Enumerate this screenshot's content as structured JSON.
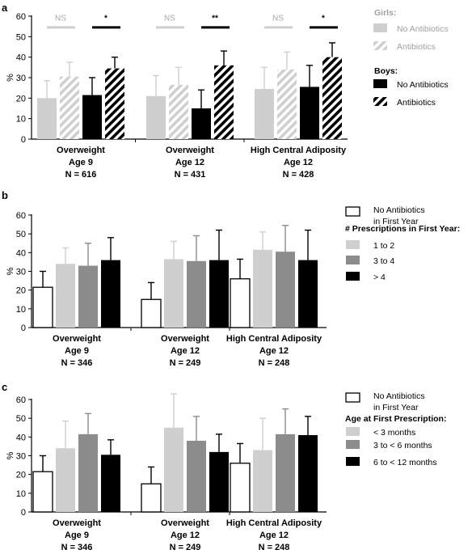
{
  "chart_data": [
    {
      "panel": "a",
      "type": "bar",
      "ylabel": "%",
      "ylim": [
        0,
        60
      ],
      "yticks": [
        "0",
        "10",
        "20",
        "30",
        "40",
        "50",
        "60"
      ],
      "groups": [
        {
          "lines": [
            "Overweight",
            "Age 9",
            "N = 616"
          ]
        },
        {
          "lines": [
            "Overweight",
            "Age 12",
            "N = 431"
          ]
        },
        {
          "lines": [
            "High Central Adiposity",
            "Age 12",
            "N = 428"
          ]
        }
      ],
      "series": [
        {
          "key": "girls_no",
          "values": [
            20,
            21,
            24.5
          ],
          "errors": [
            8.5,
            10,
            10.5
          ],
          "color": "#cfcfcf",
          "pattern": "solid",
          "outline": false
        },
        {
          "key": "girls_ab",
          "values": [
            30.5,
            26.5,
            34
          ],
          "errors": [
            7,
            8.5,
            8.5
          ],
          "color": "#cfcfcf",
          "pattern": "hatch",
          "outline": false
        },
        {
          "key": "boys_no",
          "values": [
            21.5,
            15,
            25.5
          ],
          "errors": [
            8.5,
            9,
            10.5
          ],
          "color": "#000000",
          "pattern": "solid",
          "outline": false
        },
        {
          "key": "boys_ab",
          "values": [
            34.5,
            36,
            40
          ],
          "errors": [
            5.5,
            7,
            7
          ],
          "color": "#000000",
          "pattern": "hatch",
          "outline": false
        }
      ],
      "significance": [
        {
          "group": 0,
          "girls": "NS",
          "boys": "*"
        },
        {
          "group": 1,
          "girls": "NS",
          "boys": "**"
        },
        {
          "group": 2,
          "girls": "NS",
          "boys": "*"
        }
      ],
      "legend": {
        "items": [
          {
            "kind": "header",
            "text": "Girls:",
            "color": "#a0a0a0"
          },
          {
            "kind": "item",
            "text": "No Antibiotics",
            "color": "#cfcfcf",
            "pattern": "solid",
            "textColor": "#a0a0a0"
          },
          {
            "kind": "item",
            "text": "Antibiotics",
            "color": "#cfcfcf",
            "pattern": "hatch",
            "textColor": "#a0a0a0"
          },
          {
            "kind": "header",
            "text": "Boys:",
            "color": "#000000"
          },
          {
            "kind": "item",
            "text": "No Antibiotics",
            "color": "#000000",
            "pattern": "solid",
            "textColor": "#000000"
          },
          {
            "kind": "item",
            "text": "Antibiotics",
            "color": "#000000",
            "pattern": "hatch",
            "textColor": "#000000"
          }
        ]
      }
    },
    {
      "panel": "b",
      "type": "bar",
      "ylabel": "%",
      "ylim": [
        0,
        60
      ],
      "yticks": [
        "0",
        "10",
        "20",
        "30",
        "40",
        "50",
        "60"
      ],
      "groups": [
        {
          "lines": [
            "Overweight",
            "Age 9",
            "N = 346"
          ]
        },
        {
          "lines": [
            "Overweight",
            "Age 12",
            "N = 249"
          ]
        },
        {
          "lines": [
            "High Central Adiposity",
            "Age 12",
            "N = 248"
          ]
        }
      ],
      "series": [
        {
          "key": "none",
          "values": [
            21.5,
            15,
            26
          ],
          "errors": [
            8.5,
            9,
            10.5
          ],
          "color": "#ffffff",
          "pattern": "solid",
          "outline": true
        },
        {
          "key": "p1to2",
          "values": [
            34,
            36.5,
            41.5
          ],
          "errors": [
            8.5,
            9.5,
            9.5
          ],
          "color": "#cfcfcf",
          "pattern": "solid",
          "outline": false
        },
        {
          "key": "p3to4",
          "values": [
            33,
            35.5,
            40.5
          ],
          "errors": [
            12,
            13.5,
            14
          ],
          "color": "#8c8c8c",
          "pattern": "solid",
          "outline": false
        },
        {
          "key": "pgt4",
          "values": [
            36,
            36,
            36
          ],
          "errors": [
            12,
            16,
            16
          ],
          "color": "#000000",
          "pattern": "solid",
          "outline": false
        }
      ],
      "legend": {
        "items": [
          {
            "kind": "item",
            "text": "No Antibiotics",
            "text2": "in First Year",
            "color": "#ffffff",
            "pattern": "solid",
            "outline": true,
            "textColor": "#000000"
          },
          {
            "kind": "header",
            "text": "#   Prescriptions in First  Year:",
            "color": "#000000"
          },
          {
            "kind": "item",
            "text": "1 to 2",
            "color": "#cfcfcf",
            "pattern": "solid",
            "textColor": "#000000"
          },
          {
            "kind": "item",
            "text": "3 to 4",
            "color": "#8c8c8c",
            "pattern": "solid",
            "textColor": "#000000"
          },
          {
            "kind": "item",
            "text": "> 4",
            "color": "#000000",
            "pattern": "solid",
            "textColor": "#000000"
          }
        ]
      }
    },
    {
      "panel": "c",
      "type": "bar",
      "ylabel": "%",
      "ylim": [
        0,
        60
      ],
      "yticks": [
        "0",
        "10",
        "20",
        "30",
        "40",
        "50",
        "60"
      ],
      "groups": [
        {
          "lines": [
            "Overweight",
            "Age 9",
            "N = 346"
          ]
        },
        {
          "lines": [
            "Overweight",
            "Age 12",
            "N = 249"
          ]
        },
        {
          "lines": [
            "High Central Adiposity",
            "Age 12",
            "N = 248"
          ]
        }
      ],
      "series": [
        {
          "key": "none",
          "values": [
            21.5,
            15,
            26
          ],
          "errors": [
            8.5,
            9,
            10.5
          ],
          "color": "#ffffff",
          "pattern": "solid",
          "outline": true
        },
        {
          "key": "lt3m",
          "values": [
            34,
            45,
            33
          ],
          "errors": [
            14.5,
            18,
            17
          ],
          "color": "#cfcfcf",
          "pattern": "solid",
          "outline": false
        },
        {
          "key": "3to6m",
          "values": [
            41.5,
            38,
            41.5
          ],
          "errors": [
            11,
            13,
            13.5
          ],
          "color": "#8c8c8c",
          "pattern": "solid",
          "outline": false
        },
        {
          "key": "6to12m",
          "values": [
            30.5,
            32,
            41
          ],
          "errors": [
            8,
            9.5,
            10
          ],
          "color": "#000000",
          "pattern": "solid",
          "outline": false
        }
      ],
      "legend": {
        "items": [
          {
            "kind": "item",
            "text": "No Antibiotics",
            "text2": "in First Year",
            "color": "#ffffff",
            "pattern": "solid",
            "outline": true,
            "textColor": "#000000"
          },
          {
            "kind": "header",
            "text": "Age at First Prescription:",
            "color": "#000000"
          },
          {
            "kind": "item",
            "text": "< 3  months",
            "color": "#cfcfcf",
            "pattern": "solid",
            "textColor": "#000000"
          },
          {
            "kind": "item",
            "text": "3 to < 6  months",
            "color": "#8c8c8c",
            "pattern": "solid",
            "textColor": "#000000"
          },
          {
            "kind": "item",
            "text": "6 to < 12  months",
            "color": "#000000",
            "pattern": "solid",
            "textColor": "#000000"
          }
        ]
      }
    }
  ]
}
